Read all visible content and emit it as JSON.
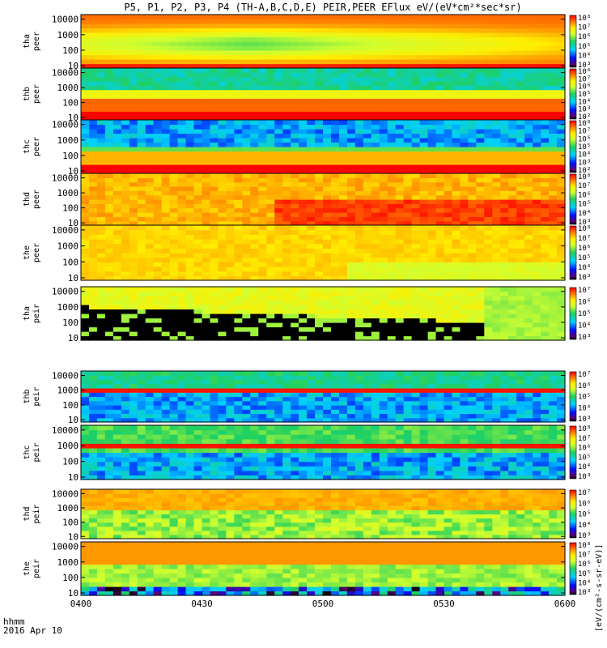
{
  "chart_data": {
    "type": "heatmap",
    "title": "P5, P1, P2, P3, P4 (TH-A,B,C,D,E) PEIR,PEER EFlux eV/(eV*cm²*sec*sr)",
    "colorbar_label": "[eV/(cm²-s-sr-eV)]",
    "x_ticks": [
      "0400",
      "0430",
      "0500",
      "0530",
      "0600"
    ],
    "x_range": [
      "04:00",
      "06:00"
    ],
    "x_axis_caption": "hhmm",
    "date_caption": "2016 Apr 10",
    "y_scale": "log",
    "y_range": [
      7,
      20000
    ],
    "y_ticks": [
      "10",
      "100",
      "1000",
      "10000"
    ],
    "panels": [
      {
        "probe": "tha",
        "species": "peer",
        "cbar_ticks": [
          "10³",
          "10⁴",
          "10⁵",
          "10⁶",
          "10⁷",
          "10⁸"
        ]
      },
      {
        "probe": "thb",
        "species": "peer",
        "cbar_ticks": [
          "10²",
          "10³",
          "10⁴",
          "10⁵",
          "10⁶",
          "10⁷",
          "10⁸"
        ]
      },
      {
        "probe": "thc",
        "species": "peer",
        "cbar_ticks": [
          "10²",
          "10³",
          "10⁴",
          "10⁵",
          "10⁶",
          "10⁷",
          "10⁸"
        ]
      },
      {
        "probe": "thd",
        "species": "peer",
        "cbar_ticks": [
          "10³",
          "10⁴",
          "10⁵",
          "10⁶",
          "10⁷",
          "10⁸"
        ]
      },
      {
        "probe": "the",
        "species": "peer",
        "cbar_ticks": [
          "10³",
          "10⁴",
          "10⁵",
          "10⁶",
          "10⁷",
          "10⁸"
        ]
      },
      {
        "probe": "tha",
        "species": "peir",
        "cbar_ticks": [
          "10³",
          "10⁴",
          "10⁵",
          "10⁶",
          "10⁷"
        ]
      },
      {
        "probe": "thb",
        "species": "peir",
        "cbar_ticks": [
          "10³",
          "10⁴",
          "10⁵",
          "10⁶",
          "10⁷"
        ]
      },
      {
        "probe": "thc",
        "species": "peir",
        "cbar_ticks": [
          "10³",
          "10⁴",
          "10⁵",
          "10⁶",
          "10⁷",
          "10⁸"
        ]
      },
      {
        "probe": "thd",
        "species": "peir",
        "cbar_ticks": [
          "10³",
          "10⁴",
          "10⁵",
          "10⁶",
          "10⁷"
        ]
      },
      {
        "probe": "the",
        "species": "peir",
        "cbar_ticks": [
          "10³",
          "10⁴",
          "10⁵",
          "10⁶",
          "10⁷",
          "10⁸"
        ]
      }
    ]
  }
}
